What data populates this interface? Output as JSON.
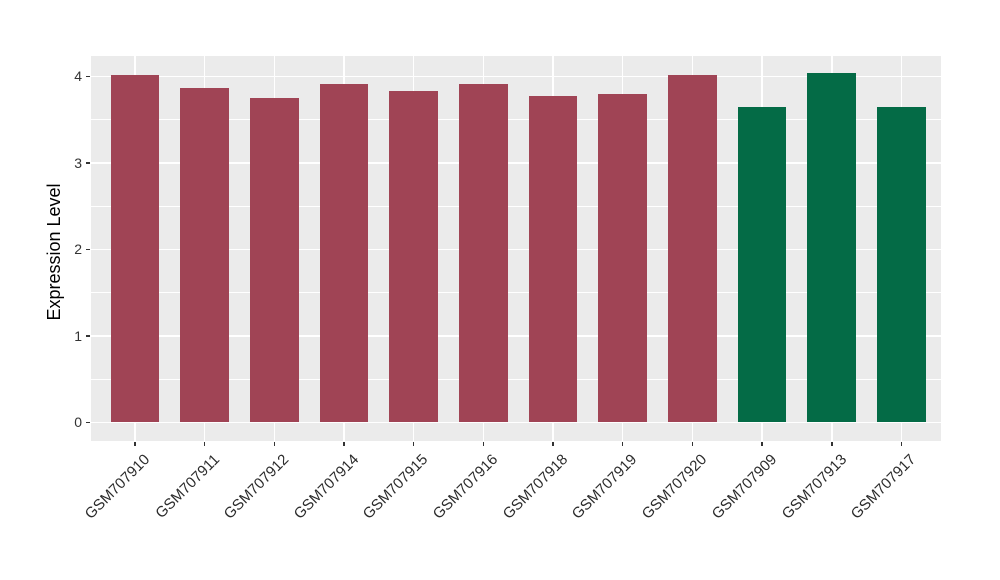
{
  "chart_data": {
    "type": "bar",
    "title": "",
    "xlabel": "",
    "ylabel": "Expression Level",
    "categories": [
      "GSM707910",
      "GSM707911",
      "GSM707912",
      "GSM707914",
      "GSM707915",
      "GSM707916",
      "GSM707918",
      "GSM707919",
      "GSM707920",
      "GSM707909",
      "GSM707913",
      "GSM707917"
    ],
    "values": [
      4.02,
      3.86,
      3.75,
      3.91,
      3.83,
      3.91,
      3.77,
      3.79,
      4.02,
      3.65,
      4.04,
      3.65
    ],
    "bar_colors": [
      "#A04455",
      "#A04455",
      "#A04455",
      "#A04455",
      "#A04455",
      "#A04455",
      "#A04455",
      "#A04455",
      "#A04455",
      "#046B46",
      "#046B46",
      "#046B46"
    ],
    "ylim": [
      -0.21,
      4.24
    ],
    "yticks": [
      0,
      1,
      2,
      3,
      4
    ],
    "yticks_minor": [
      0.5,
      1.5,
      2.5,
      3.5
    ],
    "grid": true,
    "legend_position": "none",
    "colors": {
      "group_red": "#A04455",
      "group_green": "#046B46",
      "panel_background": "#EBEBEB",
      "grid_line": "#FFFFFF",
      "axis_text": "#333333",
      "tick_mark": "#333333"
    }
  }
}
